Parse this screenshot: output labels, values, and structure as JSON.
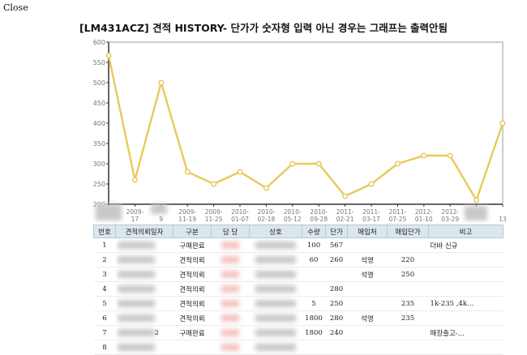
{
  "close_label": "Close",
  "chart_data": {
    "type": "line",
    "title": "[LM431ACZ] 견적 HISTORY- 단가가 숫자형 입력 아닌 경우는 그래프는 출력안됨",
    "ylim": [
      200,
      600
    ],
    "yticks": [
      "600",
      "550",
      "500",
      "450",
      "400",
      "350",
      "300",
      "250",
      "200"
    ],
    "grid": false,
    "legend": "none",
    "line_color": "#e8c95a",
    "x": [
      "",
      "2009-...-17",
      "...-...-9",
      "2009-11-19",
      "2009-11-25",
      "2010-01-07",
      "2010-02-18",
      "2010-05-12",
      "2010-09-28",
      "2011-02-21",
      "2011-03-17",
      "2011-07-25",
      "2012-01-10",
      "2012-03-29",
      "",
      "...-...-13"
    ],
    "xlabels_visible": [
      {
        "top": "",
        "bottom": ""
      },
      {
        "top": "2009-",
        "bottom": "17"
      },
      {
        "top": "",
        "bottom": "9"
      },
      {
        "top": "2009-",
        "bottom": "11-19"
      },
      {
        "top": "2009-",
        "bottom": "11-25"
      },
      {
        "top": "2010-",
        "bottom": "01-07"
      },
      {
        "top": "2010-",
        "bottom": "02-18"
      },
      {
        "top": "2010-",
        "bottom": "05-12"
      },
      {
        "top": "2010-",
        "bottom": "09-28"
      },
      {
        "top": "2011-",
        "bottom": "02-21"
      },
      {
        "top": "2011-",
        "bottom": "03-17"
      },
      {
        "top": "2011-",
        "bottom": "07-25"
      },
      {
        "top": "2012-",
        "bottom": "01-10"
      },
      {
        "top": "2012-",
        "bottom": "03-29"
      },
      {
        "top": "",
        "bottom": ""
      },
      {
        "top": "",
        "bottom": "13"
      }
    ],
    "values": [
      567,
      260,
      500,
      280,
      250,
      280,
      240,
      300,
      300,
      220,
      250,
      300,
      320,
      320,
      210,
      400
    ]
  },
  "table": {
    "headers": [
      "번호",
      "견적의뢰일자",
      "구분",
      "담 당",
      "상호",
      "수량",
      "단가",
      "매입처",
      "매입단가",
      "비고"
    ],
    "rows": [
      [
        "1",
        "",
        "구매완료",
        "",
        "",
        "100",
        "567",
        "",
        "",
        "더바 신규"
      ],
      [
        "2",
        "",
        "견적의뢰",
        "",
        "",
        "60",
        "260",
        "석영",
        "220",
        ""
      ],
      [
        "3",
        "",
        "견적의뢰",
        "",
        "",
        "",
        "",
        "석영",
        "250",
        ""
      ],
      [
        "4",
        "",
        "견적의뢰",
        "",
        "",
        "",
        "280",
        "",
        "",
        ""
      ],
      [
        "5",
        "",
        "견적의뢰",
        "",
        "",
        "5",
        "250",
        "",
        "235",
        "1k-235 ,4k…"
      ],
      [
        "6",
        "",
        "견적의뢰",
        "",
        "",
        "1800",
        "280",
        "석영",
        "235",
        ""
      ],
      [
        "7",
        "2",
        "구매완료",
        "",
        "",
        "1800",
        "240",
        "",
        "",
        "매장출고-…"
      ],
      [
        "8",
        "",
        "",
        "",
        "",
        "",
        "",
        "",
        "",
        ""
      ]
    ]
  }
}
